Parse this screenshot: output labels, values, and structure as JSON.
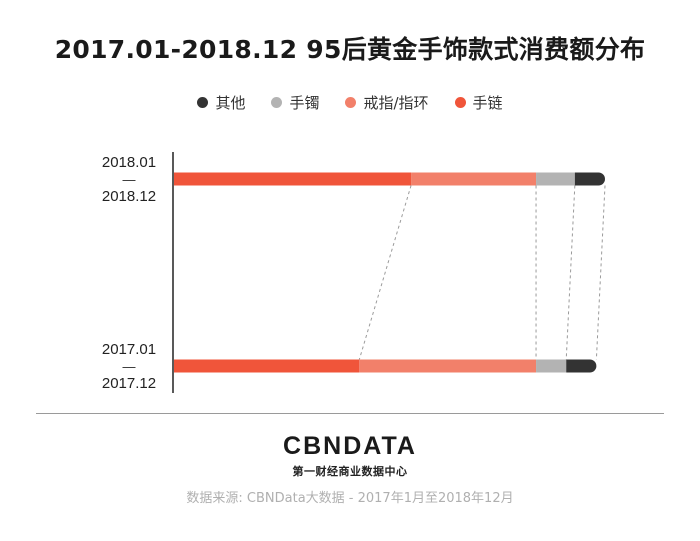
{
  "chart_data": {
    "type": "bar",
    "stacked": true,
    "orientation": "horizontal",
    "percent": true,
    "title": "2017.01-2018.12 95后黄金手饰款式消费额分布",
    "categories": [
      {
        "line1": "2018.01",
        "dash": "—",
        "line2": "2018.12"
      },
      {
        "line1": "2017.01",
        "dash": "—",
        "line2": "2017.12"
      }
    ],
    "series": [
      {
        "name": "手链",
        "color": "#f0553a",
        "values": [
          55,
          43
        ]
      },
      {
        "name": "戒指/指环",
        "color": "#f2806a",
        "values": [
          29,
          41
        ]
      },
      {
        "name": "手镯",
        "color": "#b3b3b3",
        "values": [
          9,
          7
        ]
      },
      {
        "name": "其他",
        "color": "#333333",
        "values": [
          7,
          7
        ]
      }
    ],
    "legend_order": [
      3,
      2,
      1,
      0
    ],
    "xlim": [
      0,
      100
    ],
    "grid": false,
    "legend_position": "top-center"
  },
  "footer": {
    "logo": "CBNDATA",
    "tagline": "第一财经商业数据中心",
    "source": "数据来源: CBNData大数据 - 2017年1月至2018年12月"
  }
}
